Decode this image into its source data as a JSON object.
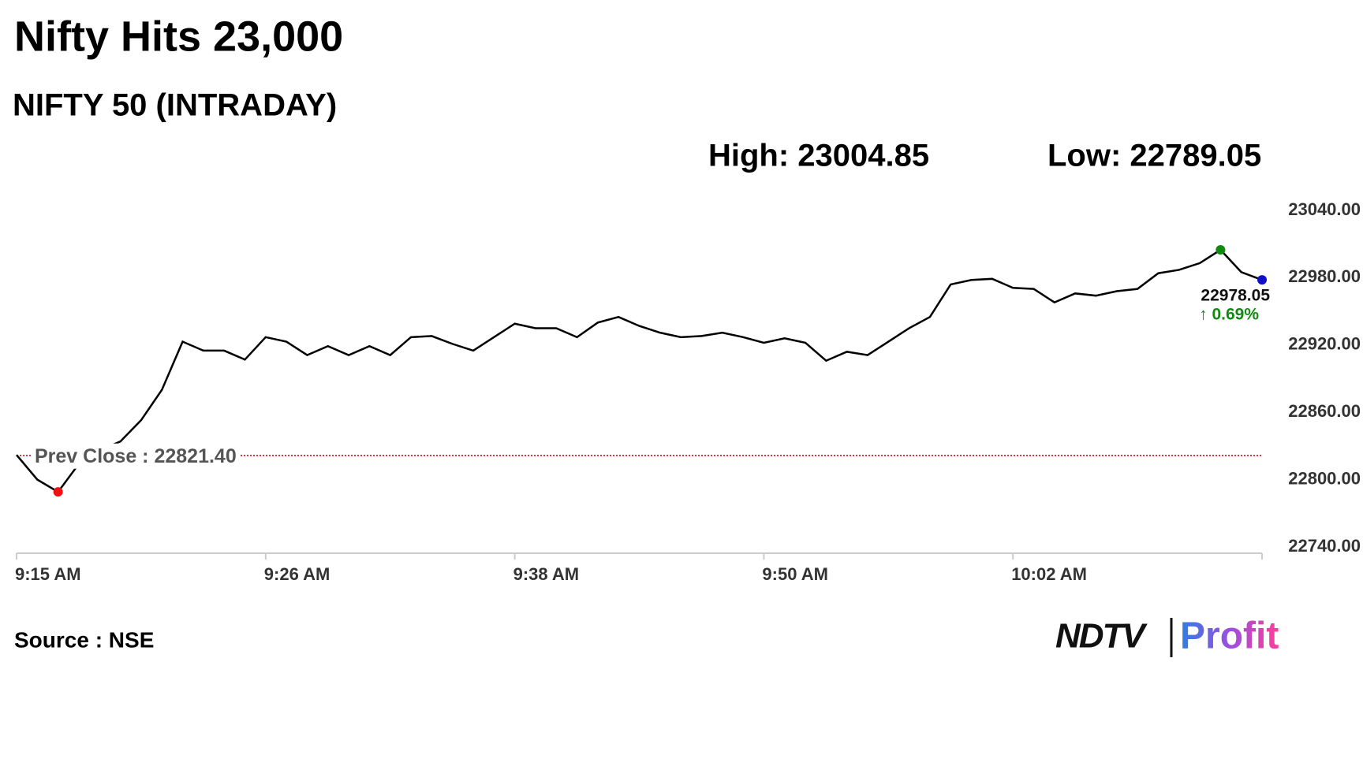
{
  "chart_data": {
    "type": "line",
    "title": "Nifty Hits 23,000",
    "subtitle": "NIFTY 50 (INTRADAY)",
    "high_label": "High: 23004.85",
    "low_label": "Low: 22789.05",
    "source": "Source : NSE",
    "logo": {
      "brand": "NDTV",
      "product": "Profit"
    },
    "categories": [
      "9:15 AM",
      null,
      null,
      null,
      null,
      null,
      null,
      null,
      null,
      null,
      null,
      null,
      "9:26 AM",
      null,
      null,
      null,
      null,
      null,
      null,
      null,
      null,
      null,
      null,
      null,
      "9:38 AM",
      null,
      null,
      null,
      null,
      null,
      null,
      null,
      null,
      null,
      null,
      null,
      "9:50 AM",
      null,
      null,
      null,
      null,
      null,
      null,
      null,
      null,
      null,
      null,
      null,
      "10:02 AM",
      null,
      null,
      null,
      null,
      null,
      null,
      null,
      null,
      null,
      null,
      null,
      null
    ],
    "values": [
      22822,
      22800,
      22789.05,
      22814,
      22826,
      22834,
      22853,
      22880,
      22923,
      22915,
      22915,
      22907,
      22927,
      22923,
      22911,
      22919,
      22911,
      22919,
      22911,
      22927,
      22928,
      22921,
      22915,
      22927,
      22939,
      22935,
      22935,
      22927,
      22940,
      22945,
      22937,
      22931,
      22927,
      22928,
      22931,
      22927,
      22922,
      22926,
      22922,
      22906,
      22914,
      22911,
      22923,
      22935,
      22945,
      22974,
      22978,
      22979,
      22971,
      22970,
      22958,
      22966,
      22964,
      22968,
      22970,
      22984,
      22987,
      22993,
      23004.85,
      22985,
      22978.05
    ],
    "color": "#000000",
    "high_color": "#128a12",
    "low_color": "#ee1111",
    "last_color": "#1010cc",
    "change_label": "↑ 0.69%",
    "change_color": "#128a12",
    "prev_close": {
      "value": 22821.4,
      "label": "Prev Close : 22821.40",
      "color": "#c00000"
    },
    "ylim": [
      22740,
      23040
    ],
    "yticks": [
      {
        "value": 22740,
        "label": "22740.00"
      },
      {
        "value": 22800,
        "label": "22800.00"
      },
      {
        "value": 22860,
        "label": "22860.00"
      },
      {
        "value": 22920,
        "label": "22920.00"
      },
      {
        "value": 22980,
        "label": "22980.00"
      },
      {
        "value": 23040,
        "label": "23040.00"
      }
    ]
  }
}
